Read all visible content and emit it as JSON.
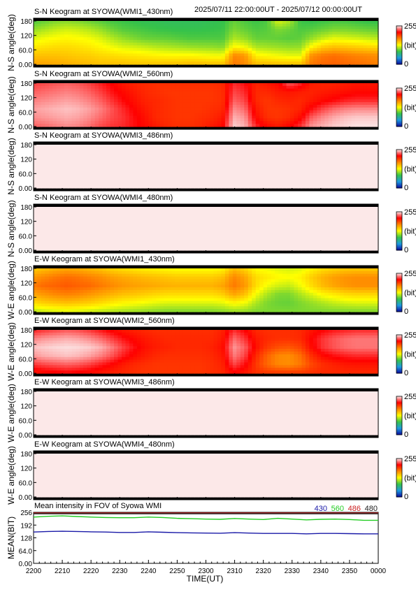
{
  "header": {
    "time_range": "2025/07/11 22:00:00UT - 2025/07/12 00:00:00UT"
  },
  "colorbar": {
    "max_label": "255",
    "unit_label": "(bit)",
    "min_label": "0"
  },
  "palette": [
    "#0a0a9c",
    "#1e9be0",
    "#36c24a",
    "#ffff00",
    "#ff8800",
    "#ff0000",
    "#fce8e8"
  ],
  "chart_data": [
    {
      "type": "heatmap",
      "title": "S-N Keogram at SYOWA(WMI1_430nm)",
      "ylabel": "N-S angle(deg)",
      "yticks": [
        "0.00",
        "60.0",
        "120",
        "180"
      ],
      "ylim": [
        0,
        180
      ],
      "xlim": [
        "22:00",
        "00:00"
      ],
      "clim": [
        0,
        255
      ],
      "rows_bottom_to_top": [
        [
          160,
          160,
          158,
          156,
          154,
          152,
          150,
          150,
          150,
          148,
          148,
          148,
          150,
          150,
          152,
          152,
          150,
          150,
          175,
          170,
          152,
          152,
          150,
          150,
          150,
          175,
          180,
          182,
          180,
          178,
          176,
          172
        ],
        [
          150,
          150,
          150,
          148,
          146,
          145,
          142,
          140,
          138,
          136,
          134,
          132,
          130,
          130,
          130,
          128,
          126,
          125,
          170,
          165,
          132,
          128,
          125,
          122,
          122,
          168,
          175,
          178,
          175,
          172,
          170,
          168
        ],
        [
          135,
          138,
          140,
          140,
          138,
          135,
          130,
          125,
          120,
          118,
          115,
          112,
          110,
          108,
          106,
          105,
          104,
          102,
          130,
          125,
          110,
          108,
          106,
          104,
          105,
          130,
          145,
          150,
          148,
          145,
          142,
          140
        ],
        [
          120,
          125,
          128,
          130,
          128,
          125,
          120,
          112,
          105,
          100,
          96,
          95,
          94,
          92,
          90,
          90,
          90,
          90,
          110,
          105,
          95,
          95,
          94,
          92,
          94,
          105,
          115,
          122,
          120,
          118,
          115,
          112
        ],
        [
          105,
          110,
          115,
          118,
          116,
          112,
          106,
          98,
          92,
          90,
          88,
          86,
          85,
          84,
          84,
          84,
          85,
          86,
          100,
          95,
          90,
          92,
          100,
          96,
          90,
          92,
          96,
          100,
          100,
          98,
          96,
          94
        ],
        [
          90,
          95,
          100,
          102,
          100,
          96,
          92,
          88,
          86,
          84,
          82,
          82,
          80,
          80,
          80,
          80,
          82,
          84,
          95,
          90,
          86,
          90,
          120,
          110,
          86,
          84,
          86,
          88,
          88,
          86,
          84,
          84
        ]
      ]
    },
    {
      "type": "heatmap",
      "title": "S-N Keogram at SYOWA(WMI2_560nm)",
      "ylabel": "N-S angle(deg)",
      "yticks": [
        "0.00",
        "60.0",
        "120",
        "180"
      ],
      "ylim": [
        0,
        180
      ],
      "xlim": [
        "22:00",
        "00:00"
      ],
      "clim": [
        0,
        255
      ],
      "rows_bottom_to_top": [
        [
          230,
          232,
          235,
          238,
          236,
          232,
          226,
          222,
          220,
          215,
          210,
          205,
          200,
          198,
          198,
          200,
          205,
          210,
          250,
          245,
          220,
          210,
          205,
          212,
          222,
          240,
          245,
          250,
          252,
          254,
          254,
          254
        ],
        [
          238,
          240,
          242,
          244,
          242,
          238,
          232,
          226,
          222,
          215,
          208,
          200,
          198,
          196,
          196,
          198,
          200,
          205,
          245,
          240,
          210,
          198,
          196,
          200,
          210,
          230,
          238,
          244,
          248,
          250,
          250,
          250
        ],
        [
          242,
          244,
          246,
          248,
          246,
          242,
          236,
          228,
          220,
          212,
          205,
          200,
          198,
          196,
          196,
          196,
          198,
          200,
          238,
          232,
          205,
          196,
          196,
          198,
          202,
          215,
          225,
          232,
          236,
          238,
          238,
          238
        ],
        [
          236,
          238,
          240,
          242,
          240,
          236,
          230,
          222,
          214,
          208,
          202,
          200,
          198,
          196,
          196,
          196,
          196,
          198,
          230,
          225,
          200,
          196,
          200,
          202,
          200,
          205,
          210,
          214,
          218,
          220,
          220,
          220
        ],
        [
          230,
          232,
          234,
          236,
          234,
          230,
          224,
          216,
          210,
          205,
          200,
          198,
          196,
          196,
          196,
          196,
          196,
          198,
          225,
          220,
          200,
          200,
          205,
          206,
          204,
          202,
          204,
          206,
          208,
          210,
          210,
          210
        ],
        [
          224,
          226,
          228,
          230,
          228,
          224,
          218,
          212,
          206,
          202,
          200,
          198,
          198,
          198,
          198,
          198,
          198,
          200,
          220,
          215,
          202,
          206,
          210,
          230,
          220,
          204,
          202,
          202,
          204,
          206,
          206,
          206
        ]
      ]
    },
    {
      "type": "heatmap",
      "title": "S-N Keogram at SYOWA(WMI3_486nm)",
      "ylabel": "N-S angle(deg)",
      "yticks": [
        "0.00",
        "60.0",
        "120",
        "180"
      ],
      "ylim": [
        0,
        180
      ],
      "xlim": [
        "22:00",
        "00:00"
      ],
      "clim": [
        0,
        255
      ],
      "fill_value": 255
    },
    {
      "type": "heatmap",
      "title": "S-N Keogram at SYOWA(WMI4_480nm)",
      "ylabel": "N-S angle(deg)",
      "yticks": [
        "0.00",
        "60.0",
        "120",
        "180"
      ],
      "ylim": [
        0,
        180
      ],
      "xlim": [
        "22:00",
        "00:00"
      ],
      "clim": [
        0,
        255
      ],
      "fill_value": 255
    },
    {
      "type": "heatmap",
      "title": "E-W Keogram at SYOWA(WMI1_430nm)",
      "ylabel": "W-E angle(deg)",
      "yticks": [
        "0.00",
        "60.0",
        "120",
        "180"
      ],
      "ylim": [
        0,
        180
      ],
      "xlim": [
        "22:00",
        "00:00"
      ],
      "clim": [
        0,
        255
      ],
      "rows_bottom_to_top": [
        [
          110,
          115,
          118,
          120,
          118,
          115,
          112,
          110,
          108,
          106,
          104,
          102,
          100,
          100,
          100,
          100,
          100,
          102,
          105,
          104,
          100,
          100,
          100,
          100,
          100,
          100,
          100,
          100,
          100,
          100,
          100,
          100
        ],
        [
          140,
          145,
          148,
          150,
          148,
          145,
          140,
          135,
          130,
          128,
          125,
          122,
          120,
          120,
          120,
          120,
          120,
          122,
          130,
          125,
          110,
          100,
          96,
          95,
          100,
          105,
          110,
          115,
          118,
          120,
          120,
          120
        ],
        [
          160,
          165,
          170,
          172,
          170,
          165,
          160,
          155,
          150,
          148,
          145,
          142,
          140,
          140,
          140,
          140,
          140,
          145,
          160,
          150,
          125,
          110,
          100,
          100,
          110,
          120,
          130,
          135,
          140,
          142,
          142,
          142
        ],
        [
          175,
          180,
          182,
          185,
          182,
          180,
          175,
          170,
          165,
          162,
          160,
          158,
          156,
          155,
          155,
          155,
          155,
          160,
          175,
          165,
          140,
          125,
          118,
          115,
          125,
          140,
          152,
          160,
          165,
          168,
          168,
          168
        ],
        [
          165,
          170,
          175,
          178,
          176,
          172,
          168,
          162,
          158,
          155,
          152,
          150,
          148,
          146,
          146,
          146,
          146,
          150,
          170,
          160,
          140,
          135,
          130,
          128,
          132,
          145,
          155,
          162,
          166,
          168,
          168,
          168
        ],
        [
          145,
          150,
          155,
          158,
          156,
          152,
          148,
          142,
          138,
          135,
          132,
          130,
          128,
          126,
          126,
          126,
          126,
          130,
          150,
          142,
          128,
          124,
          120,
          118,
          120,
          130,
          138,
          142,
          145,
          146,
          146,
          146
        ]
      ]
    },
    {
      "type": "heatmap",
      "title": "E-W Keogram at SYOWA(WMI2_560nm)",
      "ylabel": "W-E angle(deg)",
      "yticks": [
        "0.00",
        "60.0",
        "120",
        "180"
      ],
      "ylim": [
        0,
        180
      ],
      "xlim": [
        "22:00",
        "00:00"
      ],
      "clim": [
        0,
        255
      ],
      "rows_bottom_to_top": [
        [
          205,
          208,
          210,
          212,
          210,
          208,
          205,
          202,
          200,
          198,
          196,
          196,
          196,
          196,
          196,
          196,
          198,
          200,
          210,
          205,
          198,
          196,
          196,
          196,
          196,
          198,
          200,
          200,
          200,
          200,
          200,
          200
        ],
        [
          222,
          226,
          228,
          230,
          228,
          224,
          218,
          212,
          205,
          200,
          198,
          196,
          196,
          196,
          196,
          196,
          198,
          202,
          225,
          215,
          195,
          180,
          170,
          168,
          175,
          190,
          198,
          202,
          205,
          206,
          206,
          206
        ],
        [
          240,
          244,
          246,
          248,
          246,
          242,
          236,
          228,
          218,
          210,
          204,
          200,
          198,
          198,
          198,
          198,
          200,
          205,
          235,
          225,
          200,
          182,
          170,
          168,
          178,
          198,
          210,
          215,
          218,
          220,
          220,
          220
        ],
        [
          248,
          250,
          252,
          253,
          252,
          250,
          245,
          236,
          225,
          216,
          208,
          204,
          202,
          200,
          200,
          200,
          202,
          208,
          240,
          230,
          208,
          195,
          188,
          186,
          192,
          210,
          222,
          228,
          232,
          234,
          234,
          234
        ],
        [
          236,
          240,
          242,
          244,
          242,
          238,
          232,
          224,
          216,
          210,
          205,
          202,
          200,
          200,
          200,
          200,
          200,
          205,
          232,
          222,
          205,
          200,
          198,
          198,
          200,
          212,
          222,
          228,
          232,
          234,
          234,
          234
        ],
        [
          218,
          222,
          225,
          228,
          226,
          222,
          216,
          210,
          205,
          202,
          200,
          198,
          198,
          198,
          198,
          198,
          198,
          202,
          220,
          212,
          200,
          198,
          198,
          198,
          200,
          206,
          212,
          216,
          218,
          220,
          220,
          220
        ]
      ]
    },
    {
      "type": "heatmap",
      "title": "E-W Keogram at SYOWA(WMI3_486nm)",
      "ylabel": "W-E angle(deg)",
      "yticks": [
        "0.00",
        "60.0",
        "120",
        "180"
      ],
      "ylim": [
        0,
        180
      ],
      "xlim": [
        "22:00",
        "00:00"
      ],
      "clim": [
        0,
        255
      ],
      "fill_value": 255
    },
    {
      "type": "heatmap",
      "title": "E-W Keogram at SYOWA(WMI4_480nm)",
      "ylabel": "W-E angle(deg)",
      "yticks": [
        "0.00",
        "60.0",
        "120",
        "180"
      ],
      "ylim": [
        0,
        180
      ],
      "xlim": [
        "22:00",
        "00:00"
      ],
      "clim": [
        0,
        255
      ],
      "fill_value": 255
    },
    {
      "type": "line",
      "title": "Mean intensity in FOV of Syowa WMI",
      "ylabel": "MEAN(BIT)",
      "xlabel": "TIME(UT)",
      "ylim": [
        0,
        256
      ],
      "yticks": [
        "0.00",
        "64.0",
        "128",
        "192",
        "256"
      ],
      "x_minutes_from_2200": [
        0,
        5,
        10,
        15,
        20,
        25,
        30,
        35,
        40,
        45,
        50,
        55,
        60,
        65,
        70,
        75,
        80,
        85,
        90,
        95,
        100,
        105,
        110,
        115,
        120
      ],
      "xticks": [
        "2200",
        "2210",
        "2220",
        "2230",
        "2240",
        "2250",
        "2300",
        "2310",
        "2320",
        "2330",
        "2340",
        "2350",
        "0000"
      ],
      "legend_position": "top-right",
      "series": [
        {
          "name": "430",
          "color": "#1a1aa8",
          "values": [
            157,
            160,
            161,
            160,
            158,
            157,
            155,
            155,
            158,
            156,
            154,
            153,
            152,
            151,
            154,
            152,
            150,
            150,
            150,
            148,
            150,
            150,
            149,
            148,
            148
          ]
        },
        {
          "name": "560",
          "color": "#22cc22",
          "values": [
            232,
            236,
            238,
            235,
            232,
            230,
            229,
            229,
            232,
            230,
            226,
            224,
            222,
            221,
            225,
            222,
            220,
            226,
            222,
            218,
            221,
            222,
            220,
            216,
            216
          ]
        },
        {
          "name": "486",
          "color": "#cc2222",
          "values": [
            255,
            255,
            255,
            255,
            255,
            255,
            255,
            255,
            255,
            255,
            255,
            255,
            255,
            255,
            255,
            255,
            255,
            255,
            255,
            255,
            255,
            255,
            255,
            255,
            255
          ]
        },
        {
          "name": "480",
          "color": "#222222",
          "values": [
            255,
            255,
            255,
            255,
            255,
            255,
            255,
            255,
            255,
            255,
            255,
            255,
            255,
            255,
            255,
            255,
            255,
            255,
            255,
            255,
            255,
            255,
            255,
            255,
            255
          ]
        }
      ]
    }
  ]
}
